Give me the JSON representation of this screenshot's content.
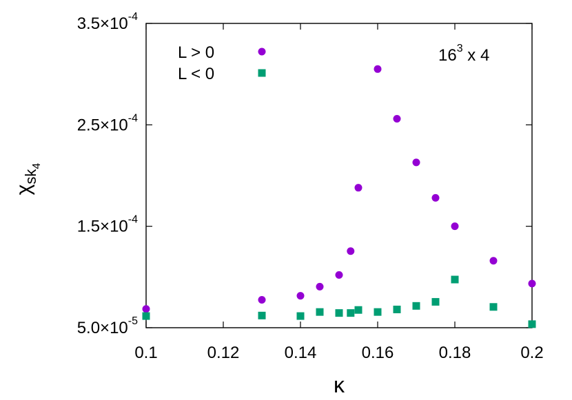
{
  "chart_data": {
    "type": "scatter",
    "annotation": {
      "base": "16",
      "exp": "3",
      "rest": " x 4"
    },
    "xlabel": "κ",
    "ylabel": {
      "main": "χ",
      "sub": "sk",
      "subsub": "4"
    },
    "xlim": [
      0.1,
      0.2
    ],
    "ylim": [
      5e-05,
      0.00035
    ],
    "legend_placement": "top-left",
    "grid": false,
    "x_ticks": [
      {
        "value": 0.1,
        "label": "0.1"
      },
      {
        "value": 0.12,
        "label": "0.12"
      },
      {
        "value": 0.14,
        "label": "0.14"
      },
      {
        "value": 0.16,
        "label": "0.16"
      },
      {
        "value": 0.18,
        "label": "0.18"
      },
      {
        "value": 0.2,
        "label": "0.2"
      }
    ],
    "y_ticks": [
      {
        "value": 5e-05,
        "mantissa": "5.0×10",
        "exp": "-5"
      },
      {
        "value": 0.00015,
        "mantissa": "1.5×10",
        "exp": "-4"
      },
      {
        "value": 0.00025,
        "mantissa": "2.5×10",
        "exp": "-4"
      },
      {
        "value": 0.00035,
        "mantissa": "3.5×10",
        "exp": "-4"
      }
    ],
    "series": [
      {
        "name": "L > 0",
        "marker": "circle",
        "color": "#9400d3",
        "points": [
          [
            0.1,
            6.85e-05
          ],
          [
            0.13,
            7.75e-05
          ],
          [
            0.14,
            8.15e-05
          ],
          [
            0.145,
            9.05e-05
          ],
          [
            0.15,
            0.000102
          ],
          [
            0.153,
            0.0001255
          ],
          [
            0.155,
            0.000188
          ],
          [
            0.16,
            0.000305
          ],
          [
            0.165,
            0.000256
          ],
          [
            0.17,
            0.000213
          ],
          [
            0.175,
            0.000178
          ],
          [
            0.18,
            0.00015
          ],
          [
            0.19,
            0.000116
          ],
          [
            0.2,
            9.35e-05
          ]
        ]
      },
      {
        "name": "L < 0",
        "marker": "square",
        "color": "#009e73",
        "points": [
          [
            0.1,
            6.15e-05
          ],
          [
            0.13,
            6.2e-05
          ],
          [
            0.14,
            6.15e-05
          ],
          [
            0.145,
            6.55e-05
          ],
          [
            0.15,
            6.45e-05
          ],
          [
            0.153,
            6.45e-05
          ],
          [
            0.155,
            6.75e-05
          ],
          [
            0.16,
            6.55e-05
          ],
          [
            0.165,
            6.8e-05
          ],
          [
            0.17,
            7.15e-05
          ],
          [
            0.175,
            7.55e-05
          ],
          [
            0.18,
            9.75e-05
          ],
          [
            0.19,
            7.05e-05
          ],
          [
            0.2,
            5.35e-05
          ]
        ]
      }
    ]
  }
}
